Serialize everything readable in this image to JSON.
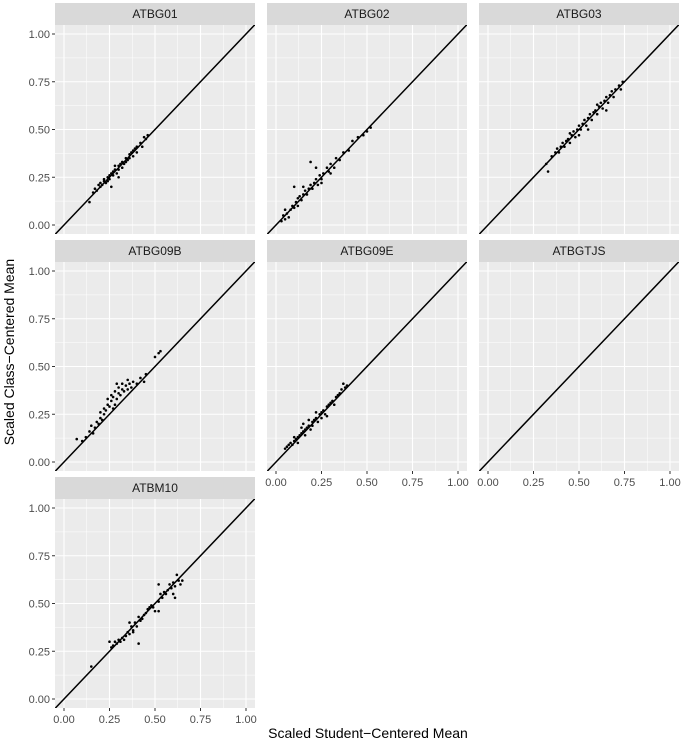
{
  "chart_data": {
    "type": "scatter",
    "facet_layout": "wrap",
    "xlabel": "Scaled Student−Centered Mean",
    "ylabel": "Scaled Class−Centered Mean",
    "xlim": [
      0,
      1
    ],
    "ylim": [
      0,
      1
    ],
    "x_ticks": [
      "0.00",
      "0.25",
      "0.50",
      "0.75",
      "1.00"
    ],
    "y_ticks": [
      "0.00",
      "0.25",
      "0.50",
      "0.75",
      "1.00"
    ],
    "reference_line": "y = x",
    "grid": true,
    "colors": {
      "panel_bg": "#ebebeb",
      "strip_bg": "#d9d9d9",
      "grid": "#ffffff",
      "points": "#000000",
      "line": "#000000"
    },
    "panels": [
      {
        "name": "ATBG01",
        "points": [
          [
            0.14,
            0.12
          ],
          [
            0.16,
            0.17
          ],
          [
            0.17,
            0.19
          ],
          [
            0.18,
            0.18
          ],
          [
            0.19,
            0.21
          ],
          [
            0.2,
            0.2
          ],
          [
            0.2,
            0.22
          ],
          [
            0.21,
            0.21
          ],
          [
            0.22,
            0.23
          ],
          [
            0.22,
            0.24
          ],
          [
            0.23,
            0.22
          ],
          [
            0.24,
            0.25
          ],
          [
            0.24,
            0.23
          ],
          [
            0.25,
            0.26
          ],
          [
            0.25,
            0.24
          ],
          [
            0.26,
            0.27
          ],
          [
            0.26,
            0.2
          ],
          [
            0.27,
            0.28
          ],
          [
            0.27,
            0.26
          ],
          [
            0.28,
            0.29
          ],
          [
            0.29,
            0.27
          ],
          [
            0.3,
            0.31
          ],
          [
            0.3,
            0.29
          ],
          [
            0.31,
            0.32
          ],
          [
            0.32,
            0.3
          ],
          [
            0.32,
            0.33
          ],
          [
            0.33,
            0.32
          ],
          [
            0.34,
            0.35
          ],
          [
            0.34,
            0.33
          ],
          [
            0.35,
            0.34
          ],
          [
            0.36,
            0.37
          ],
          [
            0.36,
            0.35
          ],
          [
            0.37,
            0.38
          ],
          [
            0.38,
            0.36
          ],
          [
            0.38,
            0.39
          ],
          [
            0.39,
            0.4
          ],
          [
            0.4,
            0.38
          ],
          [
            0.4,
            0.41
          ],
          [
            0.42,
            0.43
          ],
          [
            0.43,
            0.41
          ],
          [
            0.44,
            0.46
          ],
          [
            0.45,
            0.45
          ],
          [
            0.46,
            0.47
          ],
          [
            0.3,
            0.25
          ],
          [
            0.28,
            0.31
          ]
        ]
      },
      {
        "name": "ATBG02",
        "points": [
          [
            0.03,
            0.02
          ],
          [
            0.04,
            0.05
          ],
          [
            0.05,
            0.03
          ],
          [
            0.05,
            0.08
          ],
          [
            0.06,
            0.06
          ],
          [
            0.07,
            0.04
          ],
          [
            0.08,
            0.08
          ],
          [
            0.09,
            0.1
          ],
          [
            0.1,
            0.09
          ],
          [
            0.11,
            0.12
          ],
          [
            0.12,
            0.1
          ],
          [
            0.12,
            0.14
          ],
          [
            0.13,
            0.15
          ],
          [
            0.14,
            0.13
          ],
          [
            0.15,
            0.16
          ],
          [
            0.16,
            0.18
          ],
          [
            0.17,
            0.16
          ],
          [
            0.18,
            0.19
          ],
          [
            0.19,
            0.21
          ],
          [
            0.2,
            0.19
          ],
          [
            0.21,
            0.22
          ],
          [
            0.22,
            0.24
          ],
          [
            0.23,
            0.21
          ],
          [
            0.24,
            0.26
          ],
          [
            0.25,
            0.24
          ],
          [
            0.26,
            0.27
          ],
          [
            0.28,
            0.3
          ],
          [
            0.29,
            0.28
          ],
          [
            0.3,
            0.32
          ],
          [
            0.32,
            0.3
          ],
          [
            0.33,
            0.35
          ],
          [
            0.35,
            0.34
          ],
          [
            0.37,
            0.38
          ],
          [
            0.4,
            0.39
          ],
          [
            0.42,
            0.44
          ],
          [
            0.45,
            0.46
          ],
          [
            0.48,
            0.47
          ],
          [
            0.5,
            0.49
          ],
          [
            0.52,
            0.51
          ],
          [
            0.19,
            0.33
          ],
          [
            0.22,
            0.3
          ],
          [
            0.15,
            0.2
          ],
          [
            0.1,
            0.2
          ],
          [
            0.25,
            0.22
          ],
          [
            0.3,
            0.27
          ]
        ]
      },
      {
        "name": "ATBG03",
        "points": [
          [
            0.32,
            0.32
          ],
          [
            0.33,
            0.28
          ],
          [
            0.35,
            0.36
          ],
          [
            0.37,
            0.38
          ],
          [
            0.38,
            0.4
          ],
          [
            0.39,
            0.38
          ],
          [
            0.4,
            0.41
          ],
          [
            0.41,
            0.43
          ],
          [
            0.42,
            0.41
          ],
          [
            0.43,
            0.44
          ],
          [
            0.44,
            0.45
          ],
          [
            0.45,
            0.43
          ],
          [
            0.46,
            0.47
          ],
          [
            0.47,
            0.49
          ],
          [
            0.48,
            0.46
          ],
          [
            0.49,
            0.5
          ],
          [
            0.5,
            0.52
          ],
          [
            0.51,
            0.5
          ],
          [
            0.52,
            0.53
          ],
          [
            0.53,
            0.55
          ],
          [
            0.54,
            0.52
          ],
          [
            0.55,
            0.56
          ],
          [
            0.56,
            0.58
          ],
          [
            0.57,
            0.55
          ],
          [
            0.58,
            0.59
          ],
          [
            0.59,
            0.6
          ],
          [
            0.6,
            0.58
          ],
          [
            0.61,
            0.62
          ],
          [
            0.62,
            0.64
          ],
          [
            0.63,
            0.61
          ],
          [
            0.64,
            0.65
          ],
          [
            0.65,
            0.67
          ],
          [
            0.66,
            0.64
          ],
          [
            0.67,
            0.68
          ],
          [
            0.68,
            0.7
          ],
          [
            0.69,
            0.67
          ],
          [
            0.7,
            0.71
          ],
          [
            0.72,
            0.73
          ],
          [
            0.73,
            0.71
          ],
          [
            0.74,
            0.75
          ],
          [
            0.5,
            0.47
          ],
          [
            0.55,
            0.5
          ],
          [
            0.6,
            0.63
          ],
          [
            0.65,
            0.6
          ],
          [
            0.45,
            0.48
          ]
        ]
      },
      {
        "name": "ATBG09B",
        "points": [
          [
            0.07,
            0.12
          ],
          [
            0.1,
            0.11
          ],
          [
            0.12,
            0.13
          ],
          [
            0.14,
            0.16
          ],
          [
            0.15,
            0.19
          ],
          [
            0.16,
            0.15
          ],
          [
            0.17,
            0.18
          ],
          [
            0.18,
            0.21
          ],
          [
            0.19,
            0.2
          ],
          [
            0.2,
            0.23
          ],
          [
            0.2,
            0.26
          ],
          [
            0.21,
            0.22
          ],
          [
            0.22,
            0.25
          ],
          [
            0.22,
            0.28
          ],
          [
            0.23,
            0.27
          ],
          [
            0.24,
            0.3
          ],
          [
            0.24,
            0.33
          ],
          [
            0.25,
            0.29
          ],
          [
            0.26,
            0.32
          ],
          [
            0.26,
            0.35
          ],
          [
            0.27,
            0.34
          ],
          [
            0.28,
            0.37
          ],
          [
            0.28,
            0.3
          ],
          [
            0.29,
            0.33
          ],
          [
            0.3,
            0.36
          ],
          [
            0.3,
            0.39
          ],
          [
            0.31,
            0.35
          ],
          [
            0.32,
            0.38
          ],
          [
            0.32,
            0.41
          ],
          [
            0.33,
            0.37
          ],
          [
            0.34,
            0.4
          ],
          [
            0.35,
            0.38
          ],
          [
            0.36,
            0.41
          ],
          [
            0.37,
            0.39
          ],
          [
            0.38,
            0.42
          ],
          [
            0.4,
            0.41
          ],
          [
            0.42,
            0.44
          ],
          [
            0.44,
            0.42
          ],
          [
            0.45,
            0.46
          ],
          [
            0.5,
            0.55
          ],
          [
            0.52,
            0.57
          ],
          [
            0.53,
            0.58
          ],
          [
            0.29,
            0.41
          ],
          [
            0.35,
            0.43
          ],
          [
            0.27,
            0.28
          ]
        ]
      },
      {
        "name": "ATBG09E",
        "points": [
          [
            0.05,
            0.07
          ],
          [
            0.06,
            0.08
          ],
          [
            0.07,
            0.09
          ],
          [
            0.08,
            0.1
          ],
          [
            0.09,
            0.09
          ],
          [
            0.1,
            0.11
          ],
          [
            0.11,
            0.12
          ],
          [
            0.12,
            0.13
          ],
          [
            0.13,
            0.14
          ],
          [
            0.14,
            0.15
          ],
          [
            0.15,
            0.16
          ],
          [
            0.16,
            0.17
          ],
          [
            0.17,
            0.18
          ],
          [
            0.18,
            0.19
          ],
          [
            0.19,
            0.17
          ],
          [
            0.2,
            0.21
          ],
          [
            0.21,
            0.22
          ],
          [
            0.22,
            0.23
          ],
          [
            0.23,
            0.21
          ],
          [
            0.24,
            0.25
          ],
          [
            0.25,
            0.26
          ],
          [
            0.26,
            0.27
          ],
          [
            0.27,
            0.25
          ],
          [
            0.28,
            0.29
          ],
          [
            0.29,
            0.3
          ],
          [
            0.3,
            0.31
          ],
          [
            0.31,
            0.32
          ],
          [
            0.32,
            0.3
          ],
          [
            0.33,
            0.34
          ],
          [
            0.34,
            0.35
          ],
          [
            0.35,
            0.36
          ],
          [
            0.36,
            0.38
          ],
          [
            0.37,
            0.41
          ],
          [
            0.38,
            0.39
          ],
          [
            0.39,
            0.4
          ],
          [
            0.15,
            0.2
          ],
          [
            0.18,
            0.22
          ],
          [
            0.2,
            0.19
          ],
          [
            0.22,
            0.26
          ],
          [
            0.25,
            0.23
          ],
          [
            0.28,
            0.24
          ],
          [
            0.12,
            0.1
          ],
          [
            0.14,
            0.18
          ],
          [
            0.16,
            0.14
          ],
          [
            0.1,
            0.13
          ]
        ]
      },
      {
        "name": "ATBGTJS",
        "points": []
      },
      {
        "name": "ATBM10",
        "points": [
          [
            0.15,
            0.17
          ],
          [
            0.25,
            0.3
          ],
          [
            0.26,
            0.27
          ],
          [
            0.27,
            0.28
          ],
          [
            0.28,
            0.3
          ],
          [
            0.29,
            0.29
          ],
          [
            0.3,
            0.31
          ],
          [
            0.31,
            0.3
          ],
          [
            0.32,
            0.32
          ],
          [
            0.33,
            0.31
          ],
          [
            0.34,
            0.33
          ],
          [
            0.35,
            0.35
          ],
          [
            0.36,
            0.34
          ],
          [
            0.37,
            0.38
          ],
          [
            0.38,
            0.36
          ],
          [
            0.39,
            0.4
          ],
          [
            0.4,
            0.38
          ],
          [
            0.41,
            0.43
          ],
          [
            0.42,
            0.41
          ],
          [
            0.43,
            0.42
          ],
          [
            0.44,
            0.44
          ],
          [
            0.45,
            0.45
          ],
          [
            0.46,
            0.47
          ],
          [
            0.47,
            0.48
          ],
          [
            0.48,
            0.49
          ],
          [
            0.49,
            0.48
          ],
          [
            0.5,
            0.46
          ],
          [
            0.52,
            0.46
          ],
          [
            0.52,
            0.51
          ],
          [
            0.53,
            0.55
          ],
          [
            0.54,
            0.53
          ],
          [
            0.55,
            0.56
          ],
          [
            0.56,
            0.55
          ],
          [
            0.57,
            0.57
          ],
          [
            0.58,
            0.6
          ],
          [
            0.59,
            0.58
          ],
          [
            0.6,
            0.61
          ],
          [
            0.61,
            0.59
          ],
          [
            0.62,
            0.65
          ],
          [
            0.63,
            0.62
          ],
          [
            0.64,
            0.6
          ],
          [
            0.65,
            0.62
          ],
          [
            0.6,
            0.55
          ],
          [
            0.61,
            0.53
          ],
          [
            0.41,
            0.29
          ],
          [
            0.38,
            0.35
          ],
          [
            0.52,
            0.6
          ],
          [
            0.36,
            0.4
          ]
        ]
      }
    ]
  }
}
